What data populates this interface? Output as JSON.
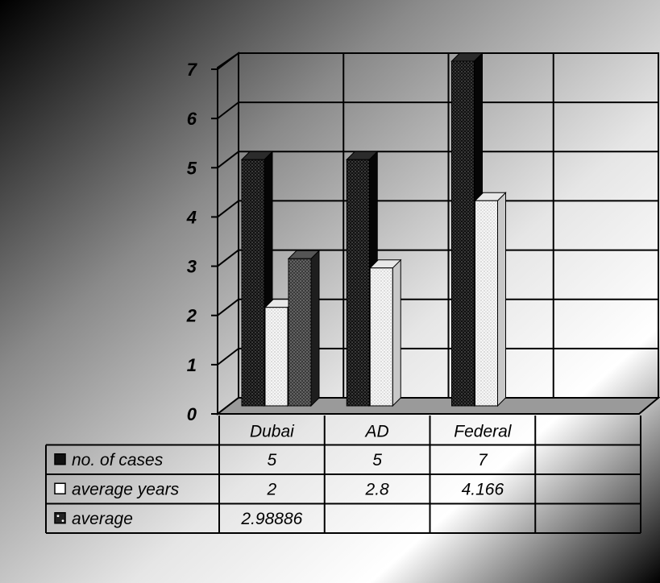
{
  "chart_data": {
    "type": "bar",
    "categories": [
      "Dubai",
      "AD",
      "Federal",
      ""
    ],
    "series": [
      {
        "name": "no. of cases",
        "values": [
          5,
          5,
          7,
          null
        ],
        "pattern": "dark-dots"
      },
      {
        "name": "average years",
        "values": [
          2,
          2.8,
          4.166,
          null
        ],
        "pattern": "light-dots"
      },
      {
        "name": "average",
        "values": [
          2.98886,
          null,
          null,
          null
        ],
        "pattern": "grey-dots"
      }
    ],
    "ylim": [
      0,
      7
    ],
    "yticks": [
      "0",
      "1",
      "2",
      "3",
      "4",
      "5",
      "6",
      "7"
    ],
    "grid": true,
    "legend": "data-table-below",
    "table": {
      "rows": [
        {
          "label": "no. of cases",
          "cells": [
            "5",
            "5",
            "7",
            ""
          ]
        },
        {
          "label": "average years",
          "cells": [
            "2",
            "2.8",
            "4.166",
            ""
          ]
        },
        {
          "label": "average",
          "cells": [
            "2.98886",
            "",
            "",
            ""
          ]
        }
      ]
    },
    "colors": {
      "background_dark": "#000000",
      "background_light": "#ffffff",
      "bar_dark": "#1a1a1a",
      "bar_light": "#f4f4f4",
      "bar_grey": "#4a4a4a"
    }
  }
}
